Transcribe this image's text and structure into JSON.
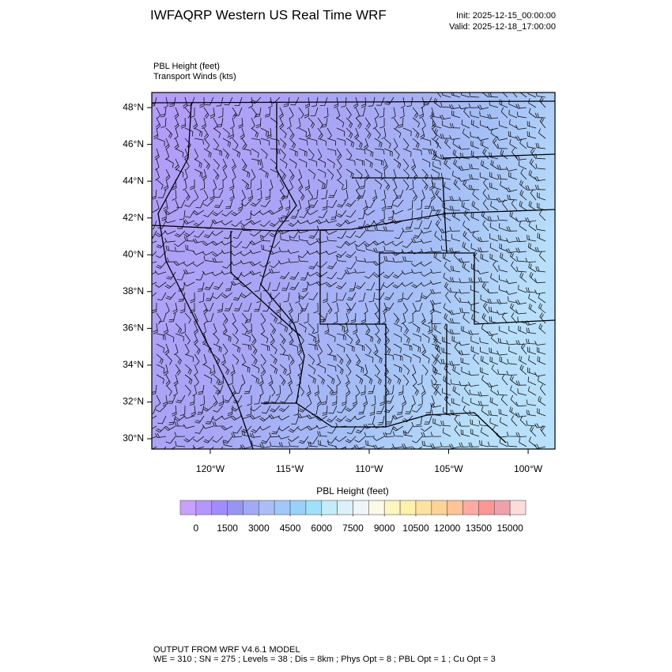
{
  "header": {
    "title": "IWFAQRP Western US Real Time WRF",
    "init": "Init: 2025-12-15_00:00:00",
    "valid": "Valid: 2025-12-18_17:00:00"
  },
  "fields": [
    "PBL Height   (feet)",
    "Transport Winds   (kts)"
  ],
  "map": {
    "xlim": [
      -123.68,
      -98.31
    ],
    "ylim": [
      29.44,
      48.82
    ],
    "yticks": [
      {
        "value": 30,
        "label": "30°N"
      },
      {
        "value": 32,
        "label": "32°N"
      },
      {
        "value": 34,
        "label": "34°N"
      },
      {
        "value": 36,
        "label": "36°N"
      },
      {
        "value": 38,
        "label": "38°N"
      },
      {
        "value": 40,
        "label": "40°N"
      },
      {
        "value": 42,
        "label": "42°N"
      },
      {
        "value": 44,
        "label": "44°N"
      },
      {
        "value": 46,
        "label": "46°N"
      },
      {
        "value": 48,
        "label": "48°N"
      }
    ],
    "xticks": [
      {
        "value": -120,
        "label": "120°W"
      },
      {
        "value": -115,
        "label": "115°W"
      },
      {
        "value": -110,
        "label": "110°W"
      },
      {
        "value": -105,
        "label": "105°W"
      },
      {
        "value": -100,
        "label": "100°W"
      }
    ]
  },
  "colorbar": {
    "title": "PBL Height  (feet)",
    "labels": [
      0,
      1500,
      3000,
      4500,
      6000,
      7500,
      9000,
      10500,
      12000,
      13500,
      15000
    ],
    "colors": [
      "#c8a0ff",
      "#b496ff",
      "#a08cff",
      "#9696f0",
      "#a0aaf5",
      "#aabef5",
      "#a0c8fa",
      "#96d2fa",
      "#a0e1fa",
      "#c3ebfa",
      "#dcf0fa",
      "#f0f5fa",
      "#fafae6",
      "#fff5be",
      "#fff0aa",
      "#ffe1a0",
      "#ffd296",
      "#ffc396",
      "#ffaaa0",
      "#ff9696",
      "#f0a0aa",
      "#fadcdc"
    ]
  },
  "footer": [
    "OUTPUT FROM WRF V4.6.1 MODEL",
    "WE = 310 ; SN = 275 ; Levels = 38 ; Dis = 8km ; Phys Opt = 8 ; PBL Opt = 1 ; Cu Opt = 3"
  ]
}
